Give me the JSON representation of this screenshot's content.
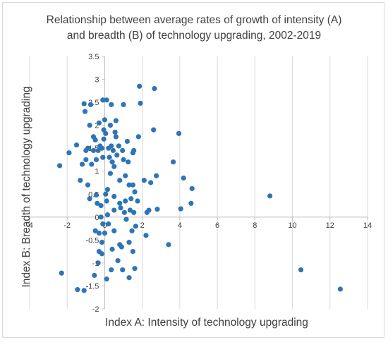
{
  "chart_data": {
    "type": "scatter",
    "title_lines": [
      "Relationship between average rates of growth of intensity (A)",
      "and breadth (B) of technology upgrading, 2002-2019"
    ],
    "xlabel": "Index A: Intensity of technology upgrading",
    "ylabel": "Index B: Breadth of technology upgrading",
    "xlim": [
      -4,
      14
    ],
    "ylim": [
      -2,
      3.5
    ],
    "xticks": [
      "-4",
      "-2",
      "0",
      "2",
      "4",
      "6",
      "8",
      "10",
      "12",
      "14"
    ],
    "yticks": [
      "-2",
      "-1.5",
      "-1",
      "-0.5",
      "0",
      "0.5",
      "1",
      "1.5",
      "2",
      "2.5",
      "3",
      "3.5"
    ],
    "grid": "vertical",
    "marker_color": "#2e75b6",
    "gridline_color": "#d9d9d9",
    "axis_color": "#bfbfbf",
    "points": [
      [
        -2.4,
        1.12
      ],
      [
        -2.3,
        -1.22
      ],
      [
        -1.9,
        1.4
      ],
      [
        -1.5,
        1.57
      ],
      [
        -1.45,
        -1.58
      ],
      [
        -1.3,
        0.8
      ],
      [
        -1.2,
        1.15
      ],
      [
        -1.1,
        2.47
      ],
      [
        -1.1,
        -1.6
      ],
      [
        -1.05,
        2.3
      ],
      [
        -1.0,
        1.45
      ],
      [
        -1.0,
        1.25
      ],
      [
        -0.9,
        1.5
      ],
      [
        -0.9,
        0.7
      ],
      [
        -0.8,
        2.0
      ],
      [
        -0.8,
        0.4
      ],
      [
        -0.75,
        2.45
      ],
      [
        -0.7,
        1.15
      ],
      [
        -0.6,
        1.75
      ],
      [
        -0.6,
        1.45
      ],
      [
        -0.55,
        -1.27
      ],
      [
        -0.5,
        1.68
      ],
      [
        -0.5,
        -0.3
      ],
      [
        -0.45,
        1.25
      ],
      [
        -0.45,
        0.48
      ],
      [
        -0.4,
        0.3
      ],
      [
        -0.35,
        1.45
      ],
      [
        -0.35,
        -1.0
      ],
      [
        -0.3,
        2.05
      ],
      [
        -0.3,
        -0.35
      ],
      [
        -0.3,
        -0.75
      ],
      [
        -0.25,
        1.55
      ],
      [
        -0.2,
        0.25
      ],
      [
        -0.2,
        0.0
      ],
      [
        -0.15,
        1.5
      ],
      [
        -0.15,
        -0.55
      ],
      [
        -0.15,
        -0.8
      ],
      [
        -0.1,
        2.55
      ],
      [
        -0.1,
        1.3
      ],
      [
        -0.1,
        -0.15
      ],
      [
        -0.05,
        1.9
      ],
      [
        -0.05,
        1.7
      ],
      [
        0.0,
        2.12
      ],
      [
        0.0,
        -0.35
      ],
      [
        0.05,
        1.82
      ],
      [
        0.05,
        0.5
      ],
      [
        0.1,
        2.55
      ],
      [
        0.1,
        0.35
      ],
      [
        0.1,
        -1.35
      ],
      [
        0.15,
        0.6
      ],
      [
        0.15,
        0.05
      ],
      [
        0.2,
        1.5
      ],
      [
        0.2,
        -0.15
      ],
      [
        0.25,
        1.3
      ],
      [
        0.3,
        2.0
      ],
      [
        0.3,
        0.95
      ],
      [
        0.35,
        2.45
      ],
      [
        0.35,
        1.55
      ],
      [
        0.35,
        -1.15
      ],
      [
        0.4,
        1.2
      ],
      [
        0.4,
        -0.7
      ],
      [
        0.45,
        1.45
      ],
      [
        0.5,
        1.1
      ],
      [
        0.5,
        0.45
      ],
      [
        0.5,
        0.15
      ],
      [
        0.5,
        -0.3
      ],
      [
        0.55,
        1.85
      ],
      [
        0.6,
        2.1
      ],
      [
        0.6,
        1.75
      ],
      [
        0.65,
        1.35
      ],
      [
        0.7,
        -0.95
      ],
      [
        0.75,
        1.55
      ],
      [
        0.8,
        0.8
      ],
      [
        0.8,
        0.3
      ],
      [
        0.8,
        -0.6
      ],
      [
        0.85,
        0.2
      ],
      [
        0.9,
        -0.65
      ],
      [
        0.95,
        1.45
      ],
      [
        0.95,
        -1.15
      ],
      [
        1.0,
        1.25
      ],
      [
        1.0,
        2.45
      ],
      [
        1.05,
        0.1
      ],
      [
        1.1,
        0.9
      ],
      [
        1.1,
        0.35
      ],
      [
        1.15,
        -0.05
      ],
      [
        1.2,
        1.65
      ],
      [
        1.25,
        1.2
      ],
      [
        1.3,
        -1.32
      ],
      [
        1.3,
        0.7
      ],
      [
        1.3,
        -0.55
      ],
      [
        1.35,
        0.15
      ],
      [
        1.4,
        0.4
      ],
      [
        1.45,
        -0.3
      ],
      [
        1.5,
        1.4
      ],
      [
        1.5,
        0.7
      ],
      [
        1.5,
        -0.75
      ],
      [
        1.55,
        0.1
      ],
      [
        1.55,
        1.45
      ],
      [
        1.6,
        -1.12
      ],
      [
        1.6,
        0.55
      ],
      [
        1.65,
        -0.2
      ],
      [
        1.75,
        0.35
      ],
      [
        1.8,
        1.75
      ],
      [
        1.85,
        2.85
      ],
      [
        1.9,
        2.48
      ],
      [
        2.1,
        0.8
      ],
      [
        2.2,
        -0.4
      ],
      [
        2.25,
        0.1
      ],
      [
        2.35,
        0.15
      ],
      [
        2.45,
        0.75
      ],
      [
        2.6,
        1.9
      ],
      [
        2.65,
        2.8
      ],
      [
        2.75,
        0.9
      ],
      [
        2.8,
        0.17
      ],
      [
        3.4,
        -0.6
      ],
      [
        3.65,
        1.2
      ],
      [
        3.95,
        1.82
      ],
      [
        4.05,
        0.18
      ],
      [
        4.2,
        0.85
      ],
      [
        4.6,
        0.3
      ],
      [
        4.65,
        0.62
      ],
      [
        8.8,
        0.46
      ],
      [
        10.45,
        -1.15
      ],
      [
        12.55,
        -1.57
      ]
    ]
  }
}
